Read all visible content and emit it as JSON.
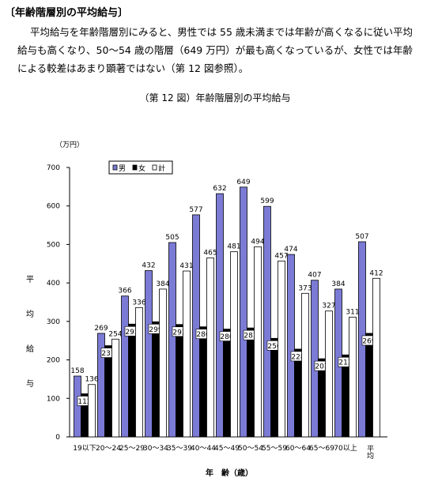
{
  "document": {
    "header": "〔年齢階層別の平均給与〕",
    "paragraph": [
      "平均給与を年齢階層別にみると、男性では 55 歳未満までは年齢が高くなるに従い平均",
      "給与も高くなり、50～54 歳の階層（649 万円）が最も高くなっているが、女性では年齢",
      "による較差はあまり顕著ではない（第 12 図参照）。"
    ]
  },
  "chart_data": {
    "type": "bar",
    "title": "（第 12 図）年齢階層別の平均給与",
    "y_unit": "（万円）",
    "y_label": "平均給与",
    "x_label": "年　齢（歳）",
    "categories": [
      "19以下",
      "20～24",
      "25～29",
      "30～34",
      "35～39",
      "40～44",
      "45～49",
      "50～54",
      "55～59",
      "60～64",
      "65～69",
      "70以上",
      "平均"
    ],
    "series": [
      {
        "name": "男",
        "color": "#7b7bd6",
        "values": [
          158,
          269,
          366,
          432,
          505,
          577,
          632,
          649,
          599,
          474,
          407,
          384,
          507
        ]
      },
      {
        "name": "女",
        "color": "#000000",
        "values": [
          112,
          237,
          293,
          299,
          292,
          286,
          280,
          283,
          256,
          228,
          203,
          213,
          269
        ]
      },
      {
        "name": "計",
        "color": "#ffffff",
        "values": [
          136,
          254,
          336,
          384,
          431,
          465,
          481,
          494,
          457,
          373,
          327,
          311,
          412
        ]
      }
    ],
    "ylim": [
      0,
      700
    ],
    "yticks": [
      0,
      100,
      200,
      300,
      400,
      500,
      600,
      700
    ]
  }
}
